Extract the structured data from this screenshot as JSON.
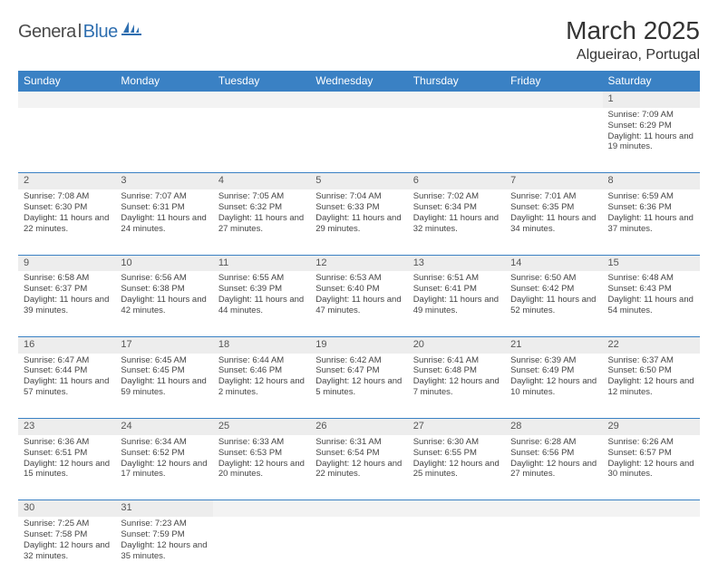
{
  "logo": {
    "text_dark": "Genera",
    "text_l": "l",
    "text_blue": "Blue"
  },
  "colors": {
    "header_bg": "#3a81c4",
    "daynum_bg": "#ededed",
    "border": "#3a81c4",
    "logo_dark": "#4a4a4a",
    "logo_blue": "#2f6fb0"
  },
  "title": "March 2025",
  "location": "Algueirao, Portugal",
  "weekdays": [
    "Sunday",
    "Monday",
    "Tuesday",
    "Wednesday",
    "Thursday",
    "Friday",
    "Saturday"
  ],
  "weeks": [
    [
      null,
      null,
      null,
      null,
      null,
      null,
      {
        "d": "1",
        "sr": "7:09 AM",
        "ss": "6:29 PM",
        "dl": "11 hours and 19 minutes."
      }
    ],
    [
      {
        "d": "2",
        "sr": "7:08 AM",
        "ss": "6:30 PM",
        "dl": "11 hours and 22 minutes."
      },
      {
        "d": "3",
        "sr": "7:07 AM",
        "ss": "6:31 PM",
        "dl": "11 hours and 24 minutes."
      },
      {
        "d": "4",
        "sr": "7:05 AM",
        "ss": "6:32 PM",
        "dl": "11 hours and 27 minutes."
      },
      {
        "d": "5",
        "sr": "7:04 AM",
        "ss": "6:33 PM",
        "dl": "11 hours and 29 minutes."
      },
      {
        "d": "6",
        "sr": "7:02 AM",
        "ss": "6:34 PM",
        "dl": "11 hours and 32 minutes."
      },
      {
        "d": "7",
        "sr": "7:01 AM",
        "ss": "6:35 PM",
        "dl": "11 hours and 34 minutes."
      },
      {
        "d": "8",
        "sr": "6:59 AM",
        "ss": "6:36 PM",
        "dl": "11 hours and 37 minutes."
      }
    ],
    [
      {
        "d": "9",
        "sr": "6:58 AM",
        "ss": "6:37 PM",
        "dl": "11 hours and 39 minutes."
      },
      {
        "d": "10",
        "sr": "6:56 AM",
        "ss": "6:38 PM",
        "dl": "11 hours and 42 minutes."
      },
      {
        "d": "11",
        "sr": "6:55 AM",
        "ss": "6:39 PM",
        "dl": "11 hours and 44 minutes."
      },
      {
        "d": "12",
        "sr": "6:53 AM",
        "ss": "6:40 PM",
        "dl": "11 hours and 47 minutes."
      },
      {
        "d": "13",
        "sr": "6:51 AM",
        "ss": "6:41 PM",
        "dl": "11 hours and 49 minutes."
      },
      {
        "d": "14",
        "sr": "6:50 AM",
        "ss": "6:42 PM",
        "dl": "11 hours and 52 minutes."
      },
      {
        "d": "15",
        "sr": "6:48 AM",
        "ss": "6:43 PM",
        "dl": "11 hours and 54 minutes."
      }
    ],
    [
      {
        "d": "16",
        "sr": "6:47 AM",
        "ss": "6:44 PM",
        "dl": "11 hours and 57 minutes."
      },
      {
        "d": "17",
        "sr": "6:45 AM",
        "ss": "6:45 PM",
        "dl": "11 hours and 59 minutes."
      },
      {
        "d": "18",
        "sr": "6:44 AM",
        "ss": "6:46 PM",
        "dl": "12 hours and 2 minutes."
      },
      {
        "d": "19",
        "sr": "6:42 AM",
        "ss": "6:47 PM",
        "dl": "12 hours and 5 minutes."
      },
      {
        "d": "20",
        "sr": "6:41 AM",
        "ss": "6:48 PM",
        "dl": "12 hours and 7 minutes."
      },
      {
        "d": "21",
        "sr": "6:39 AM",
        "ss": "6:49 PM",
        "dl": "12 hours and 10 minutes."
      },
      {
        "d": "22",
        "sr": "6:37 AM",
        "ss": "6:50 PM",
        "dl": "12 hours and 12 minutes."
      }
    ],
    [
      {
        "d": "23",
        "sr": "6:36 AM",
        "ss": "6:51 PM",
        "dl": "12 hours and 15 minutes."
      },
      {
        "d": "24",
        "sr": "6:34 AM",
        "ss": "6:52 PM",
        "dl": "12 hours and 17 minutes."
      },
      {
        "d": "25",
        "sr": "6:33 AM",
        "ss": "6:53 PM",
        "dl": "12 hours and 20 minutes."
      },
      {
        "d": "26",
        "sr": "6:31 AM",
        "ss": "6:54 PM",
        "dl": "12 hours and 22 minutes."
      },
      {
        "d": "27",
        "sr": "6:30 AM",
        "ss": "6:55 PM",
        "dl": "12 hours and 25 minutes."
      },
      {
        "d": "28",
        "sr": "6:28 AM",
        "ss": "6:56 PM",
        "dl": "12 hours and 27 minutes."
      },
      {
        "d": "29",
        "sr": "6:26 AM",
        "ss": "6:57 PM",
        "dl": "12 hours and 30 minutes."
      }
    ],
    [
      {
        "d": "30",
        "sr": "7:25 AM",
        "ss": "7:58 PM",
        "dl": "12 hours and 32 minutes."
      },
      {
        "d": "31",
        "sr": "7:23 AM",
        "ss": "7:59 PM",
        "dl": "12 hours and 35 minutes."
      },
      null,
      null,
      null,
      null,
      null
    ]
  ],
  "labels": {
    "sunrise": "Sunrise: ",
    "sunset": "Sunset: ",
    "daylight": "Daylight: "
  }
}
